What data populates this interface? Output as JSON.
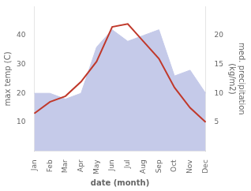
{
  "chart_data": {
    "type": "line",
    "categories": [
      "Jan",
      "Feb",
      "Mar",
      "Apr",
      "May",
      "Jun",
      "Jul",
      "Aug",
      "Sep",
      "Oct",
      "Nov",
      "Dec"
    ],
    "series": [
      {
        "type": "area",
        "color": "#c5cae9",
        "axis": "y2",
        "values": [
          10,
          10,
          9,
          10,
          18,
          21,
          19,
          20,
          21,
          13,
          14,
          10
        ]
      },
      {
        "type": "line",
        "color": "#c0392b",
        "values": [
          13,
          17,
          19,
          24,
          31,
          43,
          44,
          38,
          32,
          22,
          15,
          10
        ]
      }
    ],
    "xlabel": "date (month)",
    "ylabel": "max temp (C)",
    "y2label": "med. precipitation\n(kg/m2)",
    "ylim": [
      0,
      50
    ],
    "yticks": [
      10,
      20,
      30,
      40
    ],
    "y2lim": [
      0,
      25
    ],
    "y2ticks": [
      5,
      10,
      15,
      20
    ],
    "grid": false
  }
}
